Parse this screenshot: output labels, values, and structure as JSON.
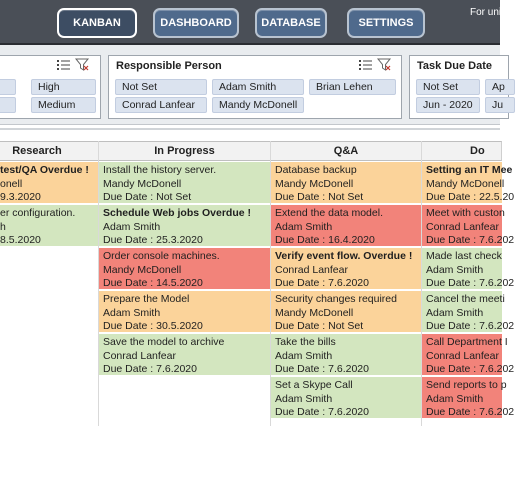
{
  "nav": {
    "buttons": [
      "KANBAN",
      "DASHBOARD",
      "DATABASE",
      "SETTINGS"
    ],
    "info": "For uni"
  },
  "filters": {
    "priority": {
      "chips": [
        "High",
        "Medium"
      ]
    },
    "responsible": {
      "title": "Responsible Person",
      "chips": [
        "Not Set",
        "Adam Smith",
        "Brian Lehen",
        "Conrad Lanfear",
        "Mandy McDonell"
      ]
    },
    "due": {
      "title": "Task Due Date",
      "chips": [
        "Not Set",
        "Ap",
        "Jun - 2020",
        "Ju"
      ]
    }
  },
  "board": {
    "columns": [
      {
        "title": "Research",
        "cards": [
          {
            "l1": "test/QA Overdue !",
            "l2": "onell",
            "l3": "9.3.2020",
            "color": "orange",
            "bold": true
          },
          {
            "l1": "er configuration.",
            "l2": "h",
            "l3": "8.5.2020",
            "color": "green",
            "bold": false
          }
        ]
      },
      {
        "title": "In Progress",
        "cards": [
          {
            "l1": "Install the history server.",
            "l2": "Mandy McDonell",
            "l3": "Due Date : Not Set",
            "color": "green",
            "bold": false
          },
          {
            "l1": "Schedule Web jobs Overdue !",
            "l2": "Adam Smith",
            "l3": "Due Date : 25.3.2020",
            "color": "green",
            "bold": true
          },
          {
            "l1": "Order console machines.",
            "l2": "Mandy McDonell",
            "l3": "Due Date : 14.5.2020",
            "color": "red",
            "bold": false
          },
          {
            "l1": "Prepare the Model",
            "l2": "Adam Smith",
            "l3": "Due Date : 30.5.2020",
            "color": "orange",
            "bold": false
          },
          {
            "l1": "Save the model to archive",
            "l2": "Conrad Lanfear",
            "l3": "Due Date : 7.6.2020",
            "color": "green",
            "bold": false
          }
        ]
      },
      {
        "title": "Q&A",
        "cards": [
          {
            "l1": "Database backup",
            "l2": "Mandy McDonell",
            "l3": "Due Date : Not Set",
            "color": "orange",
            "bold": false
          },
          {
            "l1": "Extend the data model.",
            "l2": "Adam Smith",
            "l3": "Due Date : 16.4.2020",
            "color": "red",
            "bold": false
          },
          {
            "l1": "Verify event flow. Overdue !",
            "l2": "Conrad Lanfear",
            "l3": "Due Date : 7.6.2020",
            "color": "orange",
            "bold": true
          },
          {
            "l1": "Security changes required",
            "l2": "Mandy McDonell",
            "l3": "Due Date : Not Set",
            "color": "orange",
            "bold": false
          },
          {
            "l1": "Take the bills",
            "l2": "Adam Smith",
            "l3": "Due Date : 7.6.2020",
            "color": "green",
            "bold": false
          },
          {
            "l1": "Set a Skype Call",
            "l2": "Adam Smith",
            "l3": "Due Date : 7.6.2020",
            "color": "green",
            "bold": false
          }
        ]
      },
      {
        "title": "Do",
        "cards": [
          {
            "l1": "Setting an IT Mee",
            "l2": "Mandy McDonell",
            "l3": "Due Date : 22.5.20",
            "color": "orange",
            "bold": true
          },
          {
            "l1": "Meet with custon",
            "l2": "Conrad Lanfear",
            "l3": "Due Date : 7.6.202",
            "color": "red",
            "bold": false
          },
          {
            "l1": "Made last check",
            "l2": "Adam Smith",
            "l3": "Due Date : 7.6.202",
            "color": "green",
            "bold": false
          },
          {
            "l1": "Cancel the meeti",
            "l2": "Adam Smith",
            "l3": "Due Date : 7.6.202",
            "color": "green",
            "bold": false
          },
          {
            "l1": "Call Department I",
            "l2": "Conrad Lanfear",
            "l3": "Due Date : 7.6.202",
            "color": "red",
            "bold": false
          },
          {
            "l1": "Send reports to p",
            "l2": "Adam Smith",
            "l3": "Due Date : 7.6.202",
            "color": "red",
            "bold": false
          }
        ]
      }
    ]
  },
  "colors": {
    "green": "#d3e6bf",
    "orange": "#fbd39a",
    "red": "#f2837a",
    "nav_bar": "#4a4f57",
    "nav_button": "#4f6a8c"
  }
}
